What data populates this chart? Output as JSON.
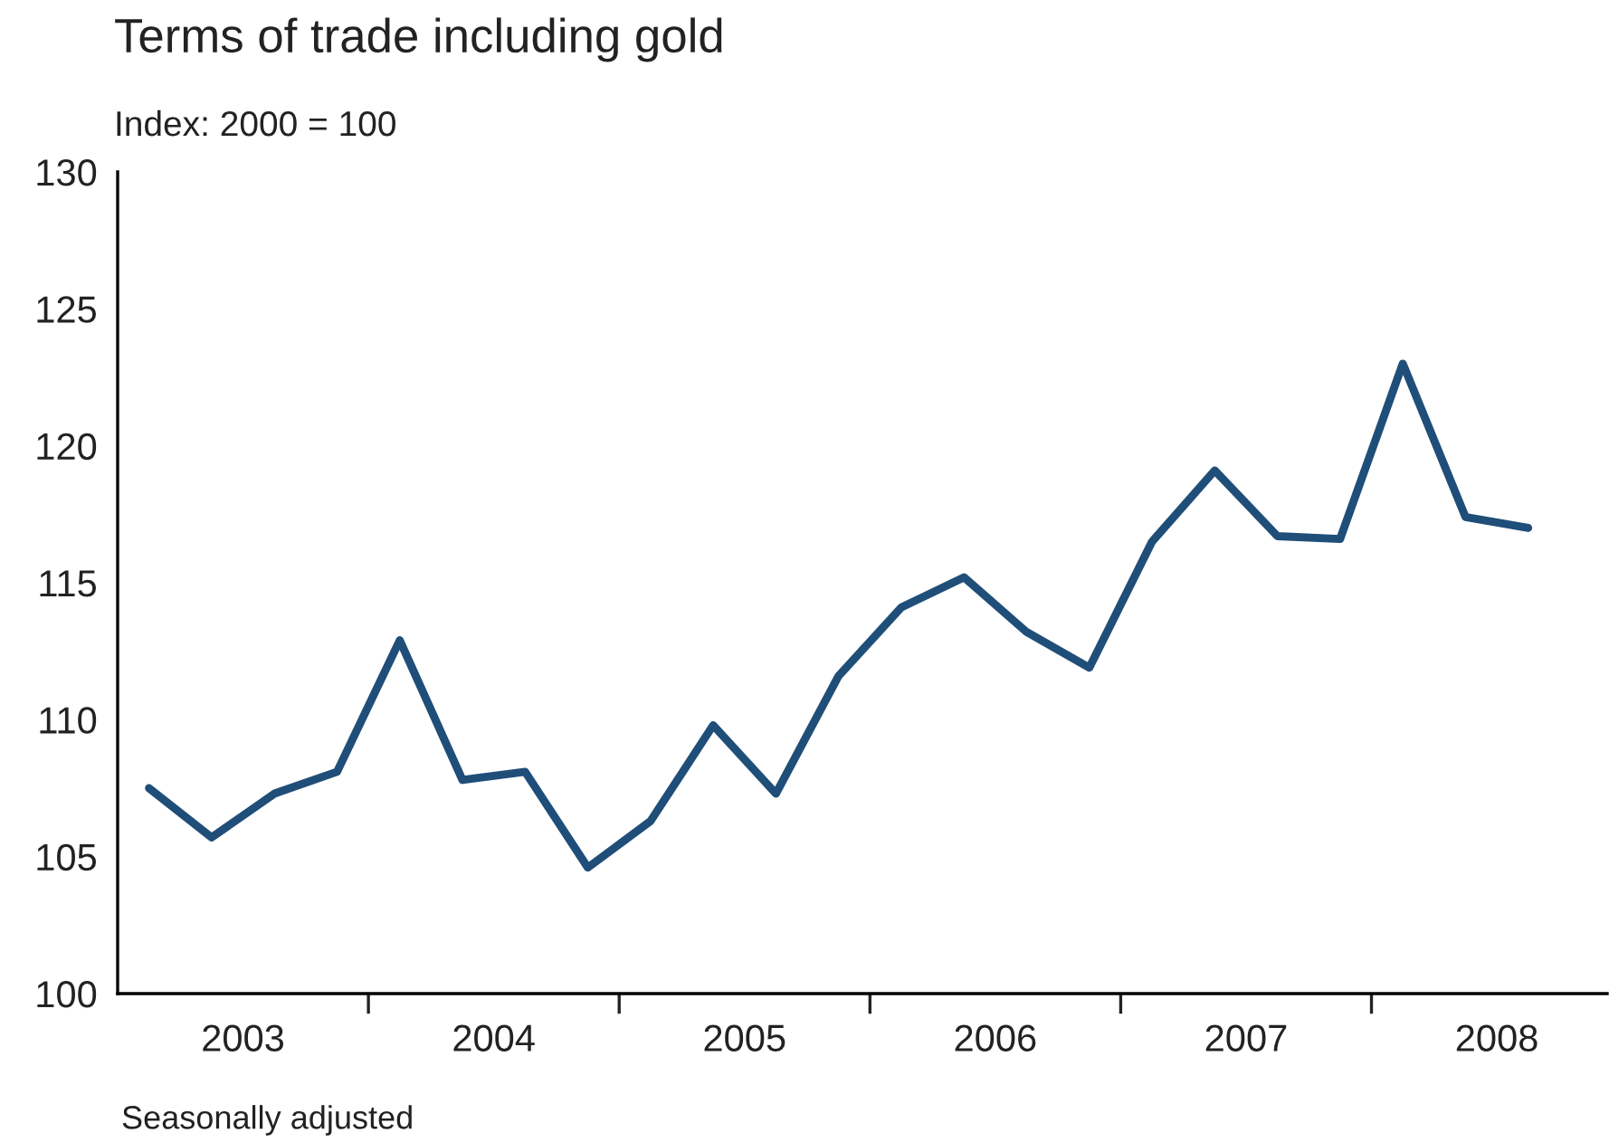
{
  "chart_data": {
    "type": "line",
    "title": "Terms of trade including gold",
    "subtitle": "Index: 2000 = 100",
    "x": [
      2003.125,
      2003.375,
      2003.625,
      2003.875,
      2004.125,
      2004.375,
      2004.625,
      2004.875,
      2005.125,
      2005.375,
      2005.625,
      2005.875,
      2006.125,
      2006.375,
      2006.625,
      2006.875,
      2007.125,
      2007.375,
      2007.625,
      2007.875,
      2008.125,
      2008.375,
      2008.625
    ],
    "series": [
      {
        "color": "#1f4e79",
        "values": [
          107.5,
          105.7,
          107.3,
          108.1,
          112.9,
          107.8,
          108.1,
          104.6,
          106.3,
          109.8,
          107.3,
          111.6,
          114.1,
          115.2,
          113.2,
          111.9,
          116.5,
          119.1,
          116.7,
          116.6,
          123.0,
          117.4,
          117.0
        ]
      }
    ],
    "xlim": [
      2003,
      2008.94
    ],
    "ylim": [
      100,
      130
    ],
    "xticks": [
      {
        "value": 2003.5,
        "label": "2003"
      },
      {
        "value": 2004,
        "label": null
      },
      {
        "value": 2004.5,
        "label": "2004"
      },
      {
        "value": 2005,
        "label": null
      },
      {
        "value": 2005.5,
        "label": "2005"
      },
      {
        "value": 2006,
        "label": null
      },
      {
        "value": 2006.5,
        "label": "2006"
      },
      {
        "value": 2007,
        "label": null
      },
      {
        "value": 2007.5,
        "label": "2007"
      },
      {
        "value": 2008,
        "label": null
      },
      {
        "value": 2008.5,
        "label": "2008"
      }
    ],
    "yticks": [
      100,
      105,
      110,
      115,
      120,
      125,
      130
    ],
    "grid": false,
    "legend": false,
    "marker": "none",
    "line_style": "solid",
    "annotations": [
      "Seasonally adjusted"
    ]
  }
}
